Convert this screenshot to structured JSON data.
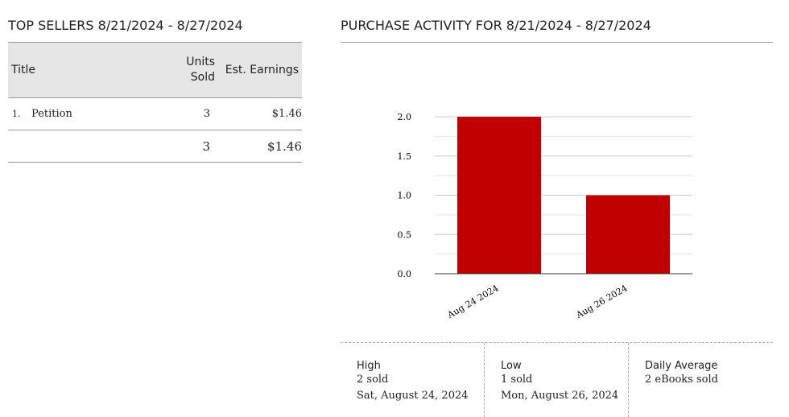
{
  "top_sellers": {
    "title": "TOP SELLERS 8/21/2024 - 8/27/2024",
    "columns": [
      "Title",
      "Units Sold",
      "Est. Earnings"
    ],
    "rows": [
      {
        "rank": "1.",
        "title": "Petition",
        "units": 3,
        "earnings": "$1.46"
      }
    ],
    "total": {
      "units": 3,
      "earnings": "$1.46"
    }
  },
  "chart_data": {
    "type": "bar",
    "title": "PURCHASE ACTIVITY FOR 8/21/2024 - 8/27/2024",
    "categories": [
      "Aug 24 2024",
      "Aug 26 2024"
    ],
    "values": [
      2,
      1
    ],
    "color": "#c00000",
    "ylim": [
      0,
      2
    ],
    "yticks": [
      {
        "value": 0,
        "label": "0.0"
      },
      {
        "value": 0.5,
        "label": "0.5"
      },
      {
        "value": 1,
        "label": "1.0"
      },
      {
        "value": 1.5,
        "label": "1.5"
      },
      {
        "value": 2,
        "label": "2.0"
      }
    ],
    "minor_yticks": [
      0.25,
      0.75,
      1.25,
      1.75
    ],
    "grid": true
  },
  "stats": [
    {
      "label": "High",
      "value": "2 sold",
      "date": "Sat, August 24, 2024"
    },
    {
      "label": "Low",
      "value": "1 sold",
      "date": "Mon, August 26, 2024"
    },
    {
      "label": "Daily Average",
      "value": "2 eBooks sold"
    }
  ]
}
